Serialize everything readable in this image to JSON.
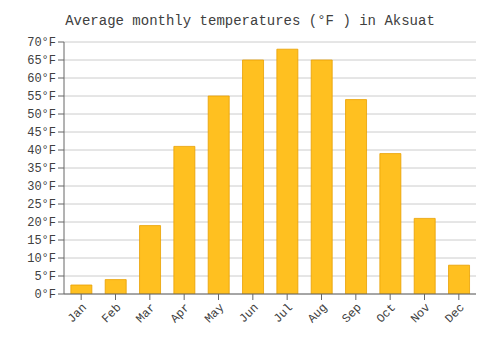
{
  "chart_data": {
    "type": "bar",
    "title": "Average monthly temperatures (°F ) in Aksuat",
    "categories": [
      "Jan",
      "Feb",
      "Mar",
      "Apr",
      "May",
      "Jun",
      "Jul",
      "Aug",
      "Sep",
      "Oct",
      "Nov",
      "Dec"
    ],
    "values": [
      2.5,
      4.0,
      19.0,
      41.0,
      55.0,
      65.0,
      68.0,
      65.0,
      54.0,
      39.0,
      21.0,
      8.0
    ],
    "color": "#FFC020",
    "ylim": [
      0,
      70
    ],
    "yticks": [
      {
        "value": 0,
        "label": "0°F"
      },
      {
        "value": 5,
        "label": "5°F"
      },
      {
        "value": 10,
        "label": "10°F"
      },
      {
        "value": 15,
        "label": "15°F"
      },
      {
        "value": 20,
        "label": "20°F"
      },
      {
        "value": 25,
        "label": "25°F"
      },
      {
        "value": 30,
        "label": "30°F"
      },
      {
        "value": 35,
        "label": "35°F"
      },
      {
        "value": 40,
        "label": "40°F"
      },
      {
        "value": 45,
        "label": "45°F"
      },
      {
        "value": 50,
        "label": "50°F"
      },
      {
        "value": 55,
        "label": "55°F"
      },
      {
        "value": 60,
        "label": "60°F"
      },
      {
        "value": 65,
        "label": "65°F"
      },
      {
        "value": 70,
        "label": "70°F"
      }
    ],
    "grid": true
  }
}
